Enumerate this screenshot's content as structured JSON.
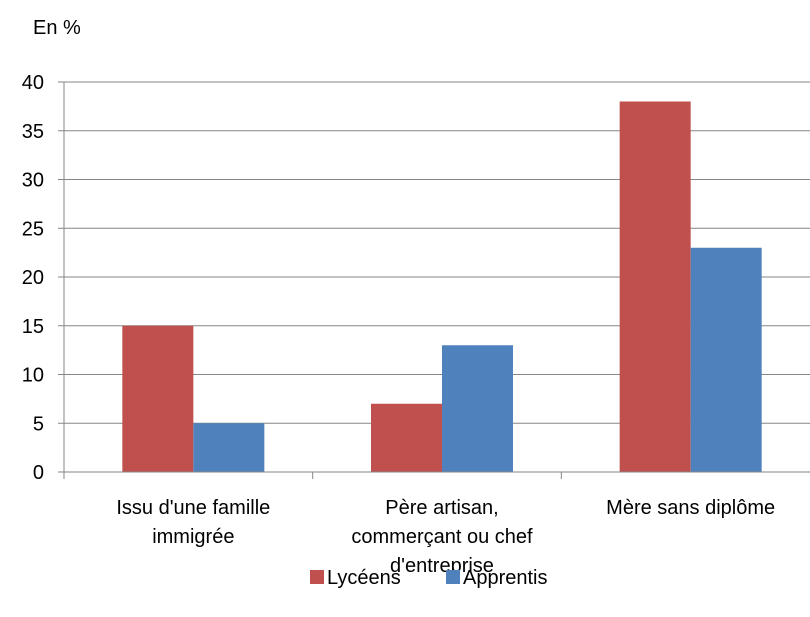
{
  "chart_data": {
    "type": "bar",
    "unit_label": "En %",
    "categories": [
      [
        "Issu d'une famille",
        "immigrée"
      ],
      [
        "Père artisan,",
        "commerçant ou chef",
        "d'entreprise"
      ],
      [
        "Mère sans diplôme"
      ]
    ],
    "series": [
      {
        "name": "Lycéens",
        "color": "#C0504D",
        "values": [
          15,
          7,
          38
        ]
      },
      {
        "name": "Apprentis",
        "color": "#4F81BD",
        "values": [
          5,
          13,
          23
        ]
      }
    ],
    "ylim": [
      0,
      40
    ],
    "yticks": [
      0,
      5,
      10,
      15,
      20,
      25,
      30,
      35,
      40
    ],
    "grid": true,
    "legend_position": "bottom"
  }
}
